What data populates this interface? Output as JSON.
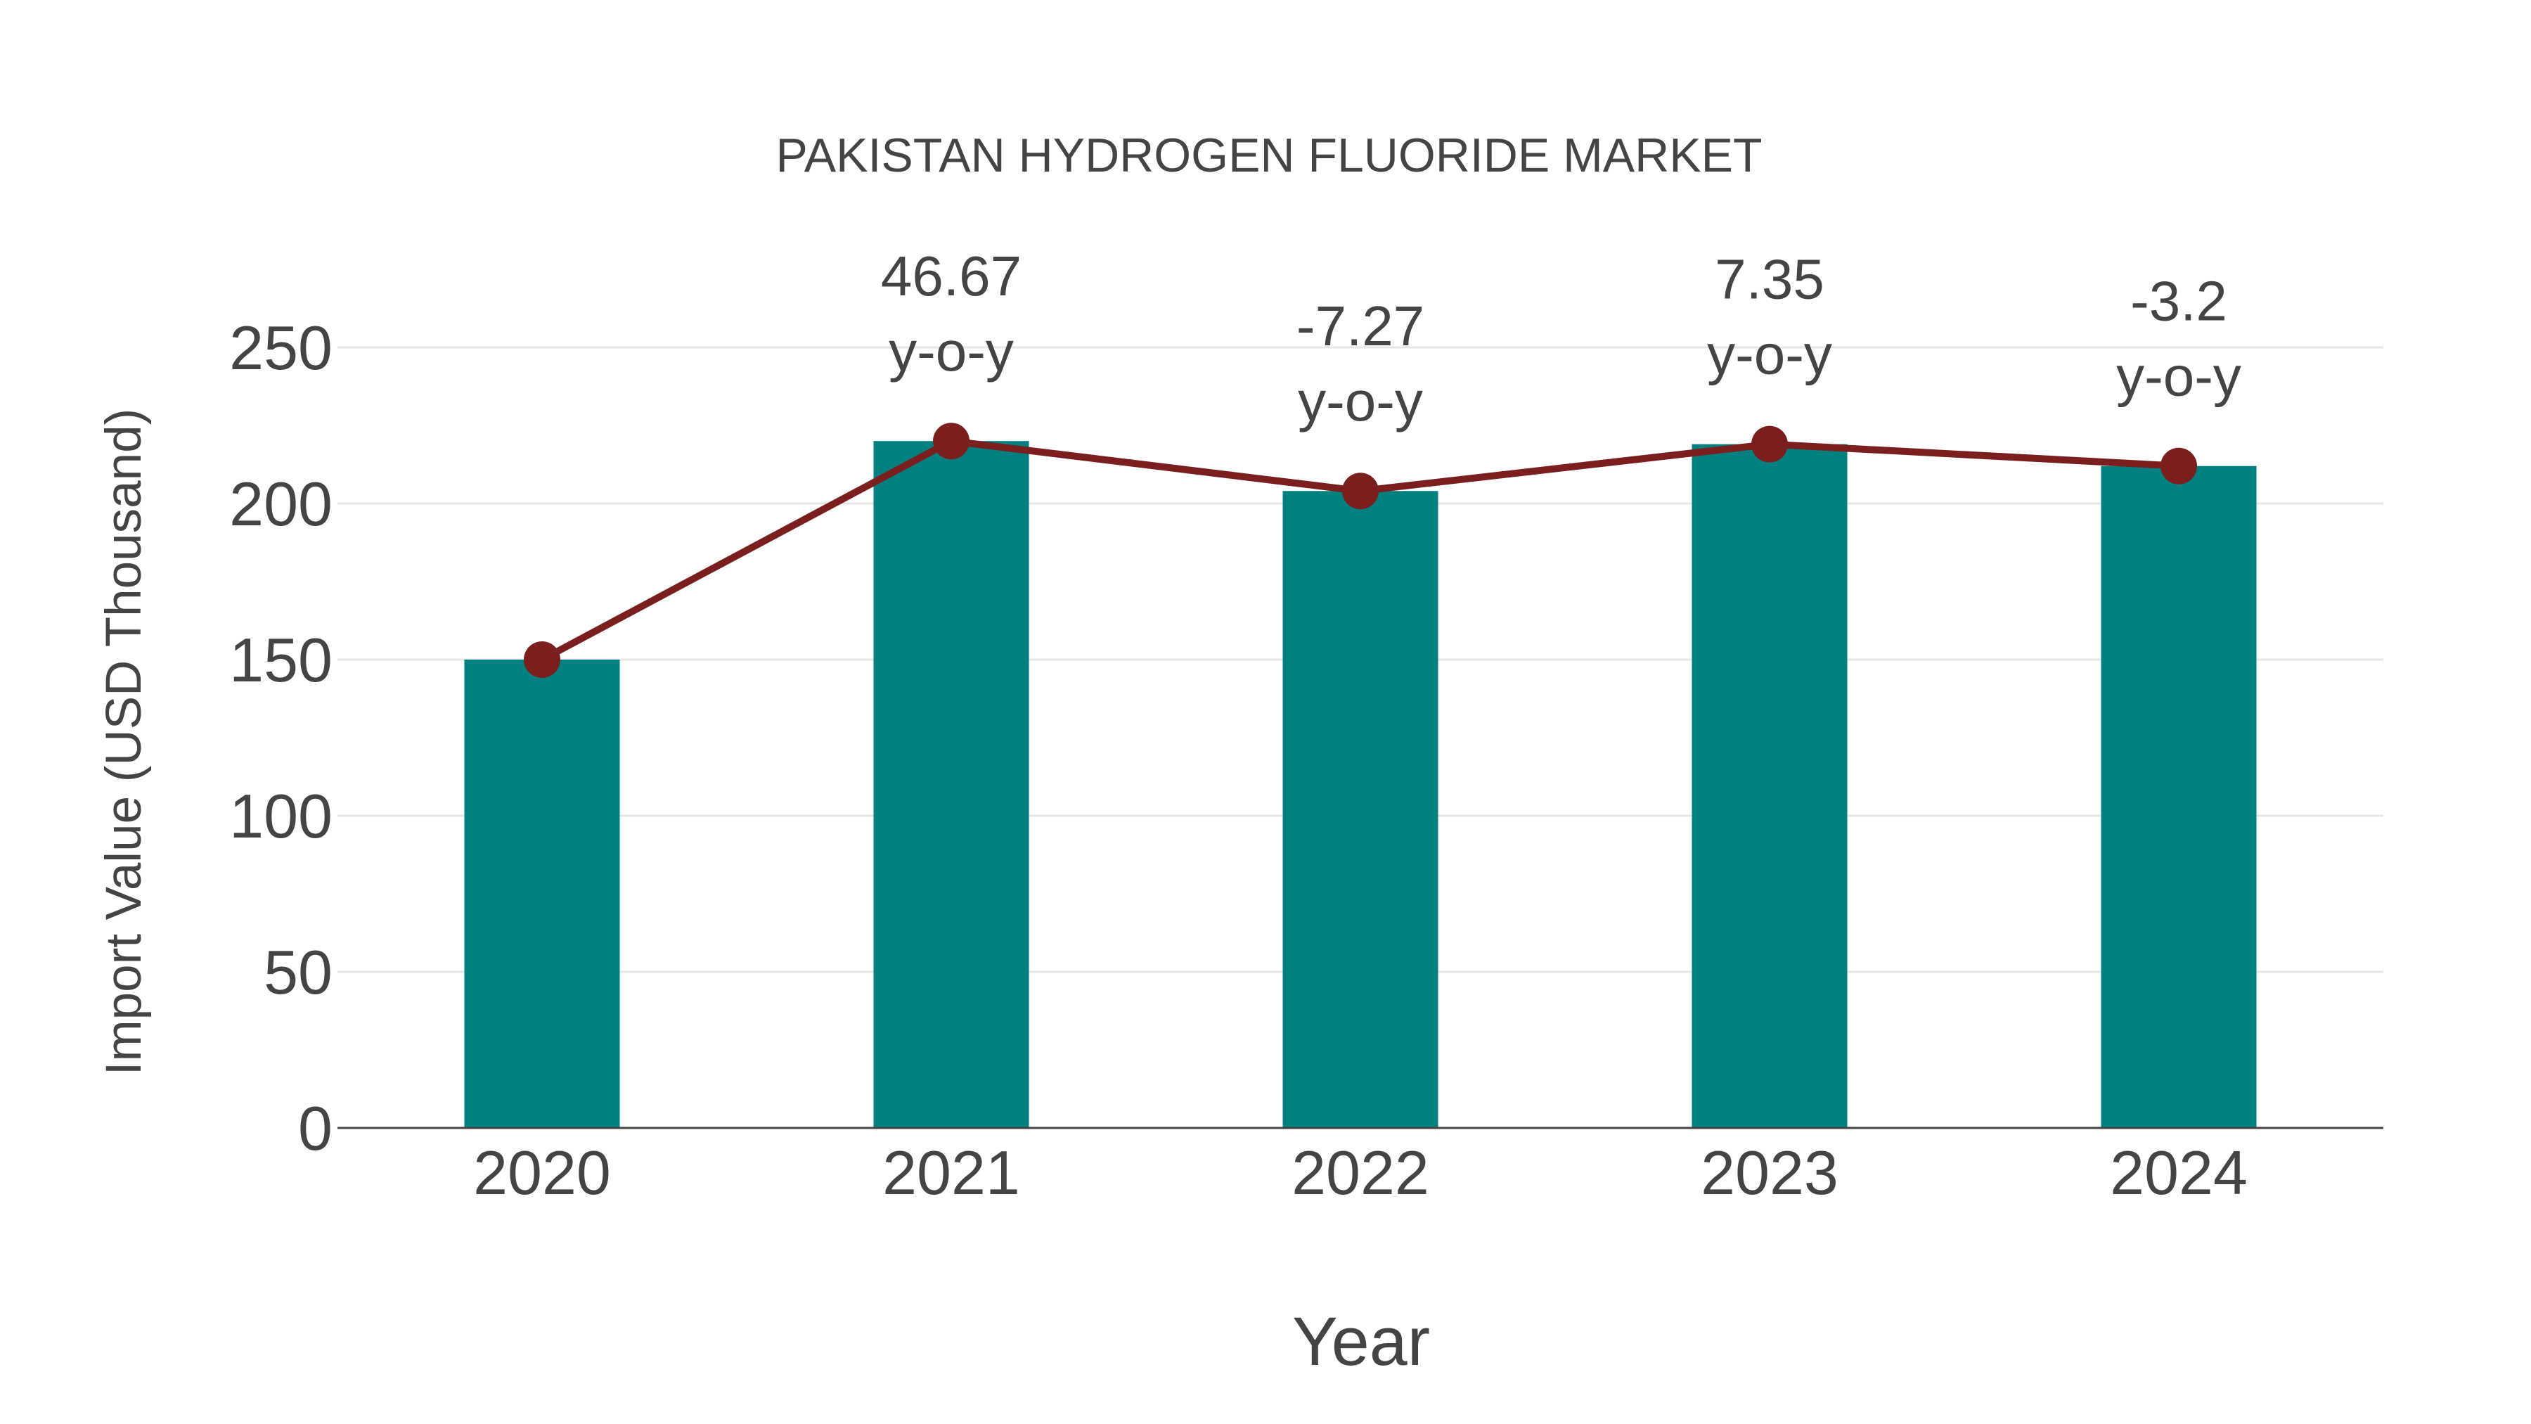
{
  "chart_data": {
    "type": "bar",
    "title": "PAKISTAN HYDROGEN FLUORIDE MARKET",
    "xlabel": "Year",
    "ylabel": "Import Value (USD Thousand)",
    "categories": [
      "2020",
      "2021",
      "2022",
      "2023",
      "2024"
    ],
    "series": [
      {
        "name": "Import Value",
        "type": "bar",
        "color": "#008080",
        "values": [
          150,
          220,
          204,
          219,
          212
        ]
      },
      {
        "name": "Import Value Trend",
        "type": "line",
        "color": "#7b1e1e",
        "values": [
          150,
          220,
          204,
          219,
          212
        ]
      }
    ],
    "annotations": [
      {
        "category": "2021",
        "value": "46.67",
        "suffix": "y-o-y"
      },
      {
        "category": "2022",
        "value": "-7.27",
        "suffix": "y-o-y"
      },
      {
        "category": "2023",
        "value": "7.35",
        "suffix": "y-o-y"
      },
      {
        "category": "2024",
        "value": "-3.2",
        "suffix": "y-o-y"
      }
    ],
    "yticks": [
      0,
      50,
      100,
      150,
      200,
      250
    ],
    "ylim": [
      0,
      262
    ],
    "grid": true,
    "legend": "none"
  },
  "colors": {
    "bar": "#008080",
    "line": "#7b1e1e",
    "text": "#444444",
    "grid": "#e6e6e6",
    "axis": "#444444"
  }
}
